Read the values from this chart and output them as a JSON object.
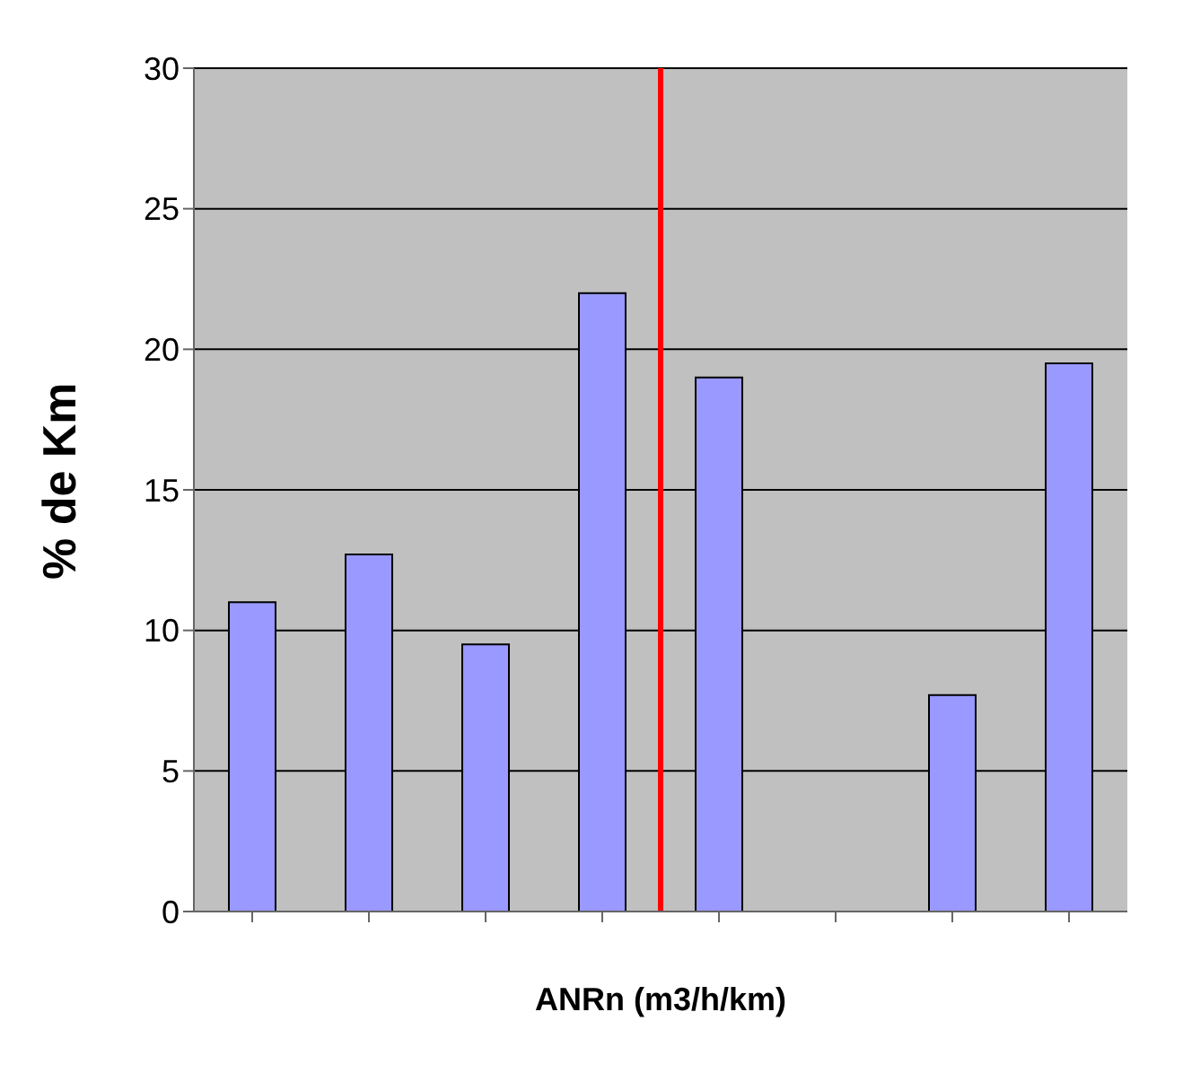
{
  "chart_data": {
    "type": "bar",
    "xlabel": "ANRn (m3/h/km)",
    "ylabel": "% de Km",
    "categories": [
      null,
      null,
      null,
      null,
      null,
      null,
      null,
      null
    ],
    "values": [
      11,
      12.7,
      9.5,
      22,
      19,
      0,
      7.7,
      19.5
    ],
    "color": "#9999ff",
    "ylim": [
      0,
      30
    ],
    "yticks": [
      0,
      5,
      10,
      15,
      20,
      25,
      30
    ],
    "grid": "y"
  }
}
